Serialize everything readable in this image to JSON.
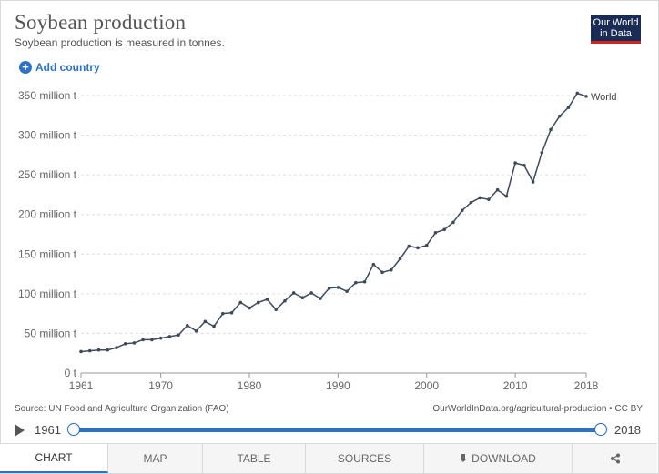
{
  "header": {
    "title": "Soybean production",
    "subtitle": "Soybean production is measured in tonnes.",
    "logo_line1": "Our World",
    "logo_line2": "in Data"
  },
  "controls": {
    "add_country_label": "Add country"
  },
  "footer": {
    "source": "Source: UN Food and Agriculture Organization (FAO)",
    "credit": "OurWorldInData.org/agricultural-production • CC BY"
  },
  "timeline": {
    "start": "1961",
    "end": "2018"
  },
  "tabs": [
    {
      "label": "CHART",
      "active": true
    },
    {
      "label": "MAP"
    },
    {
      "label": "TABLE"
    },
    {
      "label": "SOURCES"
    },
    {
      "label": "DOWNLOAD"
    },
    {
      "label": ""
    }
  ],
  "colors": {
    "line": "#3d4a5c",
    "accent": "#2d72c4",
    "logo_bg": "#1a2b56",
    "logo_stripe": "#ce261e"
  },
  "icons": {
    "add": "plus-circle-icon",
    "play": "play-icon",
    "download": "download-icon",
    "share": "share-icon"
  },
  "chart_data": {
    "type": "line",
    "title": "Soybean production",
    "x_ticks": [
      1961,
      1970,
      1980,
      1990,
      2000,
      2010,
      2018
    ],
    "x_tick_labels": [
      "1961",
      "1970",
      "1980",
      "1990",
      "2000",
      "2010",
      "2018"
    ],
    "y_ticks": [
      0,
      50,
      100,
      150,
      200,
      250,
      300,
      350
    ],
    "y_tick_labels": [
      "0 t",
      "50 million t",
      "100 million t",
      "150 million t",
      "200 million t",
      "250 million t",
      "300 million t",
      "350 million t"
    ],
    "xlim": [
      1961,
      2018
    ],
    "ylim": [
      0,
      350
    ],
    "grid": "horizontal dashed",
    "series": [
      {
        "name": "World",
        "x": [
          1961,
          1962,
          1963,
          1964,
          1965,
          1966,
          1967,
          1968,
          1969,
          1970,
          1971,
          1972,
          1973,
          1974,
          1975,
          1976,
          1977,
          1978,
          1979,
          1980,
          1981,
          1982,
          1983,
          1984,
          1985,
          1986,
          1987,
          1988,
          1989,
          1990,
          1991,
          1992,
          1993,
          1994,
          1995,
          1996,
          1997,
          1998,
          1999,
          2000,
          2001,
          2002,
          2003,
          2004,
          2005,
          2006,
          2007,
          2008,
          2009,
          2010,
          2011,
          2012,
          2013,
          2014,
          2015,
          2016,
          2017,
          2018
        ],
        "values": [
          27,
          28,
          29,
          29,
          32,
          37,
          38,
          42,
          42,
          44,
          46,
          48,
          60,
          53,
          65,
          59,
          75,
          76,
          89,
          82,
          89,
          93,
          80,
          91,
          101,
          95,
          101,
          94,
          107,
          108,
          103,
          114,
          115,
          137,
          127,
          130,
          144,
          160,
          158,
          161,
          177,
          181,
          190,
          205,
          215,
          221,
          219,
          231,
          223,
          265,
          262,
          241,
          278,
          307,
          324,
          335,
          353,
          349
        ]
      }
    ]
  }
}
